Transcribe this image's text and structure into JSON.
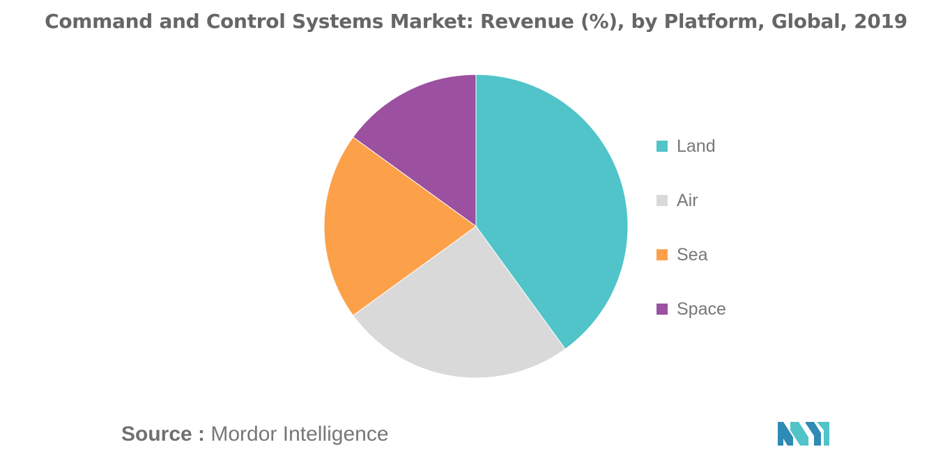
{
  "chart_data": {
    "type": "pie",
    "title": "Command and Control Systems Market: Revenue (%), by Platform, Global, 2019",
    "categories": [
      "Land",
      "Air",
      "Sea",
      "Space"
    ],
    "values": [
      40,
      25,
      20,
      15
    ],
    "colors": [
      "#50C4C9",
      "#D9D9D9",
      "#FDA04A",
      "#9B50A0"
    ],
    "legend_position": "right"
  },
  "source": {
    "label": "Source :",
    "text": "Mordor Intelligence"
  },
  "logo": {
    "icon": "mordor-intelligence-logo",
    "colors": [
      "#2E8BB5",
      "#50C4C9"
    ]
  }
}
